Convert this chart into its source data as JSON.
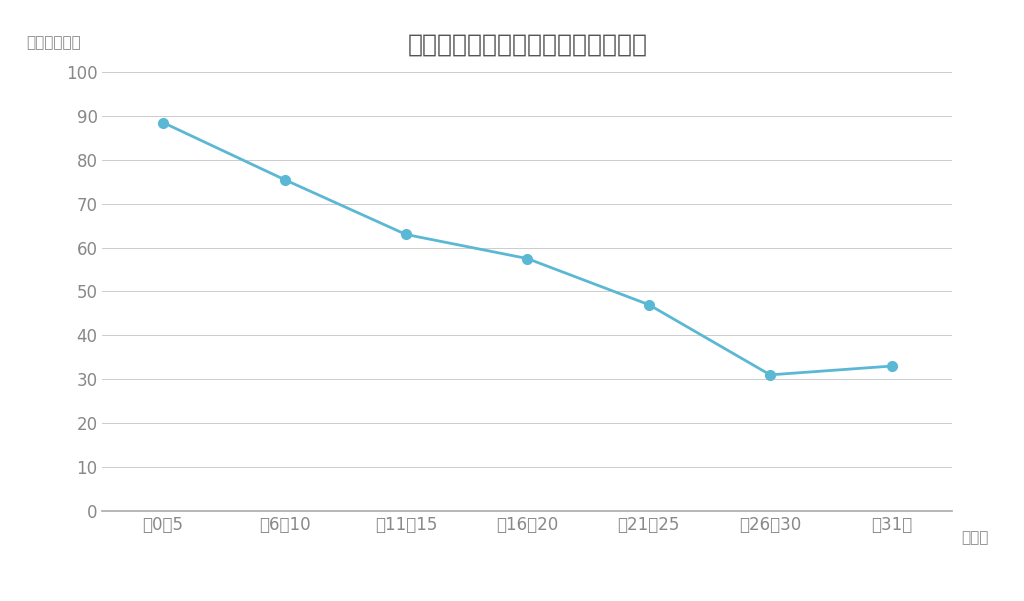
{
  "title": "首都圈中古マンション筑年数別単価",
  "ylabel": "（万円／㎡）",
  "xlabel_unit": "（年）",
  "categories": [
    "筑0～5",
    "筑6～10",
    "筑11～15",
    "筑16～20",
    "筑21～25",
    "筑26～30",
    "筑31～"
  ],
  "values": [
    88.5,
    75.5,
    63.0,
    57.5,
    47.0,
    31.0,
    33.0
  ],
  "ylim": [
    0,
    100
  ],
  "yticks": [
    0,
    10,
    20,
    30,
    40,
    50,
    60,
    70,
    80,
    90,
    100
  ],
  "line_color": "#5BB8D4",
  "marker_color": "#5BB8D4",
  "background_color": "#FFFFFF",
  "title_color": "#555555",
  "axis_color": "#AAAAAA",
  "tick_color": "#888888",
  "grid_color": "#CCCCCC",
  "title_fontsize": 18,
  "tick_fontsize": 12,
  "unit_fontsize": 11
}
